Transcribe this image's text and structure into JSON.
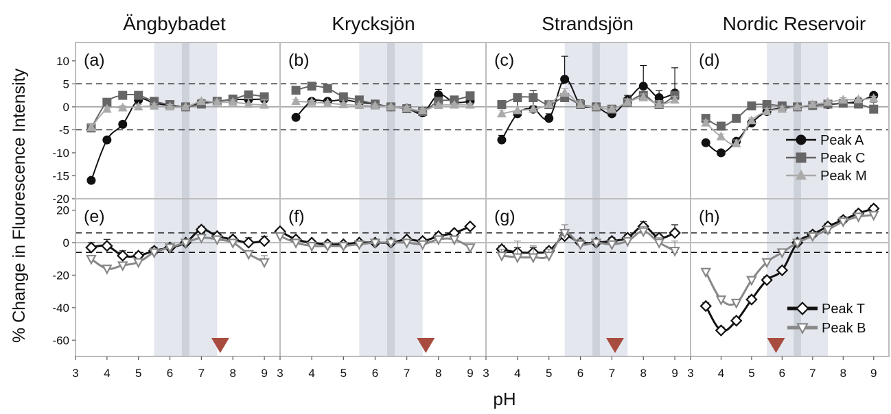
{
  "figure": {
    "ylabel": "% Change in Fluorescence Intensity",
    "xlabel": "pH",
    "columns": [
      "Ängbybadet",
      "Krycksjön",
      "Strandsjön",
      "Nordic Reservoir"
    ]
  },
  "colors": {
    "peak_a": "#111111",
    "peak_c": "#666666",
    "peak_m": "#aaaaaa",
    "peak_t": "#111111",
    "peak_b": "#888888",
    "marker": "#a84c40",
    "band": "#e4e7ee",
    "band_center": "#cdd1da"
  },
  "chart_data": [
    {
      "type": "scatter",
      "panel_label": "(a)",
      "lake": "Ängbybadet",
      "row": "top",
      "xlim": [
        3,
        9.5
      ],
      "ylim": [
        -20,
        14
      ],
      "yticks": [
        10,
        5,
        0,
        -5,
        -10,
        -15,
        -20
      ],
      "xticks": [
        3,
        4,
        5,
        6,
        7,
        8,
        9
      ],
      "reference_lines": [
        5,
        -5
      ],
      "shaded_ph": [
        5.5,
        7.5
      ],
      "center_ph": 6.5,
      "series": [
        {
          "name": "Peak A",
          "x": [
            3.5,
            4,
            4.5,
            5,
            5.5,
            6,
            6.5,
            7,
            7.5,
            8,
            8.5,
            9
          ],
          "y": [
            -16,
            -7.2,
            -3.8,
            1.5,
            0.8,
            0.3,
            0,
            0.8,
            1.2,
            1.6,
            1.6,
            1.7
          ],
          "err": [
            0.6,
            0.6,
            0.6,
            0.5,
            0.5,
            0.4,
            0.3,
            0.5,
            0.5,
            0.5,
            0.5,
            0.5
          ]
        },
        {
          "name": "Peak C",
          "x": [
            3.5,
            4,
            4.5,
            5,
            5.5,
            6,
            6.5,
            7,
            7.5,
            8,
            8.5,
            9
          ],
          "y": [
            -4.6,
            1.0,
            2.5,
            2.5,
            1.2,
            0.5,
            0,
            0.6,
            1.2,
            1.7,
            2.6,
            2.2
          ],
          "err": [
            0.6,
            0.4,
            0.4,
            0.4,
            0.4,
            0.4,
            0.3,
            0.4,
            0.5,
            0.5,
            0.6,
            0.6
          ]
        },
        {
          "name": "Peak M",
          "x": [
            3.5,
            4,
            4.5,
            5,
            5.5,
            6,
            6.5,
            7,
            7.5,
            8,
            8.5,
            9
          ],
          "y": [
            -4.5,
            -0.5,
            -0.2,
            0,
            0.2,
            0,
            0,
            1.2,
            1.0,
            1.0,
            0.6,
            0.4
          ],
          "err": [
            0.6,
            0.5,
            0.5,
            0.5,
            0.5,
            0.5,
            0.3,
            0.5,
            0.5,
            0.5,
            1.2,
            1.2
          ]
        }
      ]
    },
    {
      "type": "scatter",
      "panel_label": "(b)",
      "lake": "Krycksjön",
      "row": "top",
      "xlim": [
        3,
        9.5
      ],
      "ylim": [
        -20,
        14
      ],
      "yticks": [
        10,
        5,
        0,
        -5,
        -10,
        -15,
        -20
      ],
      "xticks": [
        3,
        4,
        5,
        6,
        7,
        8,
        9
      ],
      "reference_lines": [
        5,
        -5
      ],
      "shaded_ph": [
        5.5,
        7.5
      ],
      "center_ph": 6.5,
      "series": [
        {
          "name": "Peak A",
          "x": [
            3.5,
            4,
            4.5,
            5,
            5.5,
            6,
            6.5,
            7,
            7.5,
            8,
            8.5,
            9
          ],
          "y": [
            -2.3,
            1.2,
            1.2,
            1.5,
            1.0,
            0.6,
            0,
            -0.3,
            -1.3,
            2.6,
            1.0,
            1.2
          ],
          "err": [
            0.4,
            0.4,
            0.4,
            0.4,
            0.4,
            0.4,
            0.3,
            0.4,
            0.5,
            1.2,
            0.5,
            0.5
          ]
        },
        {
          "name": "Peak C",
          "x": [
            3.5,
            4,
            4.5,
            5,
            5.5,
            6,
            6.5,
            7,
            7.5,
            8,
            8.5,
            9
          ],
          "y": [
            3.6,
            4.5,
            4.0,
            2.2,
            1.5,
            0.6,
            0,
            -0.4,
            -1.0,
            1.2,
            1.5,
            2.4
          ],
          "err": [
            0.4,
            0.4,
            0.4,
            0.4,
            0.4,
            0.4,
            0.3,
            0.4,
            0.4,
            0.4,
            0.4,
            0.4
          ]
        },
        {
          "name": "Peak M",
          "x": [
            3.5,
            4,
            4.5,
            5,
            5.5,
            6,
            6.5,
            7,
            7.5,
            8,
            8.5,
            9
          ],
          "y": [
            1.2,
            1.0,
            0.8,
            0.5,
            0.3,
            0.2,
            0,
            -0.3,
            -0.8,
            0.3,
            0.4,
            0.4
          ],
          "err": [
            0.4,
            0.4,
            0.4,
            0.4,
            0.4,
            0.4,
            0.3,
            0.4,
            0.4,
            0.4,
            0.4,
            0.4
          ]
        }
      ]
    },
    {
      "type": "scatter",
      "panel_label": "(c)",
      "lake": "Strandsjön",
      "row": "top",
      "xlim": [
        3,
        9.5
      ],
      "ylim": [
        -20,
        14
      ],
      "yticks": [
        10,
        5,
        0,
        -5,
        -10,
        -15,
        -20
      ],
      "xticks": [
        3,
        4,
        5,
        6,
        7,
        8,
        9
      ],
      "reference_lines": [
        5,
        -5
      ],
      "shaded_ph": [
        5.5,
        7.5
      ],
      "center_ph": 6.5,
      "series": [
        {
          "name": "Peak A",
          "x": [
            3.5,
            4,
            4.5,
            5,
            5.5,
            6,
            6.5,
            7,
            7.5,
            8,
            8.5,
            9
          ],
          "y": [
            -7.2,
            -1.5,
            -0.5,
            -2.5,
            6.0,
            0.5,
            0,
            -1.5,
            1.5,
            4.5,
            2.0,
            3.0
          ],
          "err": [
            1.0,
            4.0,
            4.0,
            1.0,
            5.0,
            1.0,
            0.5,
            0.8,
            1.0,
            4.5,
            1.5,
            5.5
          ]
        },
        {
          "name": "Peak C",
          "x": [
            3.5,
            4,
            4.5,
            5,
            5.5,
            6,
            6.5,
            7,
            7.5,
            8,
            8.5,
            9
          ],
          "y": [
            0.5,
            2.0,
            2.0,
            0.5,
            2.0,
            0.5,
            0,
            -0.5,
            1.0,
            2.5,
            0.5,
            2.5
          ],
          "err": [
            0.5,
            0.5,
            0.5,
            0.5,
            0.5,
            0.5,
            0.4,
            0.5,
            0.5,
            0.5,
            0.5,
            0.5
          ]
        },
        {
          "name": "Peak M",
          "x": [
            3.5,
            4,
            4.5,
            5,
            5.5,
            6,
            6.5,
            7,
            7.5,
            8,
            8.5,
            9
          ],
          "y": [
            -1.5,
            -0.8,
            -0.5,
            0.5,
            3.0,
            0.5,
            0,
            -0.5,
            1.0,
            2.0,
            0.5,
            1.5
          ],
          "err": [
            0.8,
            0.8,
            0.8,
            0.8,
            1.0,
            0.8,
            0.4,
            0.6,
            0.6,
            0.8,
            0.8,
            0.8
          ]
        }
      ]
    },
    {
      "type": "scatter",
      "panel_label": "(d)",
      "lake": "Nordic Reservoir",
      "row": "top",
      "xlim": [
        3,
        9.5
      ],
      "ylim": [
        -20,
        14
      ],
      "yticks": [
        10,
        5,
        0,
        -5,
        -10,
        -15,
        -20
      ],
      "xticks": [
        3,
        4,
        5,
        6,
        7,
        8,
        9
      ],
      "reference_lines": [
        5,
        -5
      ],
      "shaded_ph": [
        5.5,
        7.5
      ],
      "center_ph": 6.5,
      "series": [
        {
          "name": "Peak A",
          "x": [
            3.5,
            4,
            4.5,
            5,
            5.5,
            6,
            6.5,
            7,
            7.5,
            8,
            8.5,
            9
          ],
          "y": [
            -7.8,
            -10.0,
            -7.5,
            -3.5,
            -1.0,
            -0.3,
            0,
            0.3,
            0.5,
            0.8,
            1.2,
            2.5
          ],
          "err": [
            0.5,
            0.5,
            0.5,
            0.5,
            0.5,
            0.5,
            0.3,
            0.5,
            0.5,
            0.5,
            0.5,
            0.6
          ]
        },
        {
          "name": "Peak C",
          "x": [
            3.5,
            4,
            4.5,
            5,
            5.5,
            6,
            6.5,
            7,
            7.5,
            8,
            8.5,
            9
          ],
          "y": [
            -2.5,
            -4.2,
            -2.5,
            0.2,
            0.5,
            0.2,
            0,
            0.3,
            0.6,
            0.8,
            0.6,
            -0.5
          ],
          "err": [
            0.5,
            0.5,
            0.5,
            0.5,
            0.5,
            0.5,
            0.3,
            0.5,
            0.5,
            0.5,
            0.5,
            1.5
          ]
        },
        {
          "name": "Peak M",
          "x": [
            3.5,
            4,
            4.5,
            5,
            5.5,
            6,
            6.5,
            7,
            7.5,
            8,
            8.5,
            9
          ],
          "y": [
            -3.5,
            -6.5,
            -8.0,
            -3.0,
            -1.0,
            -0.5,
            0,
            0.5,
            1.0,
            1.5,
            1.6,
            1.8
          ],
          "err": [
            0.6,
            0.6,
            0.8,
            0.6,
            0.6,
            0.6,
            0.3,
            0.5,
            0.5,
            0.5,
            0.5,
            0.5
          ]
        }
      ],
      "legend": [
        "Peak A",
        "Peak C",
        "Peak M"
      ],
      "legend_position": "right"
    },
    {
      "type": "scatter",
      "panel_label": "(e)",
      "lake": "Ängbybadet",
      "row": "bottom",
      "xlim": [
        3,
        9.5
      ],
      "ylim": [
        -70,
        27
      ],
      "yticks": [
        20,
        0,
        -20,
        -40,
        -60
      ],
      "xticks": [
        3,
        4,
        5,
        6,
        7,
        8,
        9
      ],
      "reference_lines": [
        6,
        -6
      ],
      "shaded_ph": [
        5.5,
        7.5
      ],
      "center_ph": 6.5,
      "marker_ph": 7.6,
      "series": [
        {
          "name": "Peak T",
          "x": [
            3.5,
            4,
            4.5,
            5,
            5.5,
            6,
            6.5,
            7,
            7.5,
            8,
            8.5,
            9
          ],
          "y": [
            -3,
            -2,
            -8,
            -8,
            -5,
            -3,
            0,
            8,
            4,
            2,
            0,
            1
          ],
          "err": [
            3,
            4,
            3,
            2,
            2,
            2,
            1,
            2,
            2,
            2,
            3,
            3
          ]
        },
        {
          "name": "Peak B",
          "x": [
            3.5,
            4,
            4.5,
            5,
            5.5,
            6,
            6.5,
            7,
            7.5,
            8,
            8.5,
            9
          ],
          "y": [
            -10,
            -16,
            -14,
            -12,
            -6,
            -3,
            0,
            3,
            2,
            0,
            -7,
            -12
          ],
          "err": [
            2,
            2,
            2,
            2,
            2,
            2,
            1,
            2,
            2,
            2,
            2,
            4
          ]
        }
      ]
    },
    {
      "type": "scatter",
      "panel_label": "(f)",
      "lake": "Krycksjön",
      "row": "bottom",
      "xlim": [
        3,
        9.5
      ],
      "ylim": [
        -70,
        27
      ],
      "yticks": [
        20,
        0,
        -20,
        -40,
        -60
      ],
      "xticks": [
        3,
        4,
        5,
        6,
        7,
        8,
        9
      ],
      "reference_lines": [
        6,
        -6
      ],
      "shaded_ph": [
        5.5,
        7.5
      ],
      "center_ph": 6.5,
      "marker_ph": 7.6,
      "series": [
        {
          "name": "Peak T",
          "x": [
            3,
            3.5,
            4,
            4.5,
            5,
            5.5,
            6,
            6.5,
            7,
            7.5,
            8,
            8.5,
            9
          ],
          "y": [
            7,
            2,
            0,
            -1,
            -1,
            0,
            0,
            0,
            2,
            1,
            4,
            6,
            10
          ],
          "err": [
            1,
            1,
            1,
            1,
            1,
            1,
            1,
            1,
            1,
            1,
            1,
            1,
            1
          ]
        },
        {
          "name": "Peak B",
          "x": [
            3,
            3.5,
            4,
            4.5,
            5,
            5.5,
            6,
            6.5,
            7,
            7.5,
            8,
            8.5,
            9
          ],
          "y": [
            4,
            0,
            -2,
            -2,
            -2,
            -1,
            0,
            0,
            0,
            -1,
            2,
            2,
            -3
          ],
          "err": [
            1,
            1,
            1,
            1,
            1,
            1,
            1,
            1,
            1,
            1,
            1,
            1,
            1
          ]
        }
      ]
    },
    {
      "type": "scatter",
      "panel_label": "(g)",
      "lake": "Strandsjön",
      "row": "bottom",
      "xlim": [
        3,
        9.5
      ],
      "ylim": [
        -70,
        27
      ],
      "yticks": [
        20,
        0,
        -20,
        -40,
        -60
      ],
      "xticks": [
        3,
        4,
        5,
        6,
        7,
        8,
        9
      ],
      "reference_lines": [
        6,
        -6
      ],
      "shaded_ph": [
        5.5,
        7.5
      ],
      "center_ph": 6.5,
      "marker_ph": 7.1,
      "series": [
        {
          "name": "Peak T",
          "x": [
            3.5,
            4,
            4.5,
            5,
            5.5,
            6,
            6.5,
            7,
            7.5,
            8,
            8.5,
            9
          ],
          "y": [
            -4,
            -6,
            -6,
            -5,
            4,
            0,
            0,
            1,
            3,
            10,
            3,
            6
          ],
          "err": [
            2,
            3,
            3,
            2,
            3,
            2,
            1,
            2,
            2,
            3,
            3,
            5
          ]
        },
        {
          "name": "Peak B",
          "x": [
            3.5,
            4,
            4.5,
            5,
            5.5,
            6,
            6.5,
            7,
            7.5,
            8,
            8.5,
            9
          ],
          "y": [
            -8,
            -9,
            -9,
            -8,
            6,
            -1,
            0,
            -1,
            1,
            7,
            0,
            -5
          ],
          "err": [
            4,
            10,
            7,
            4,
            5,
            3,
            1,
            2,
            2,
            3,
            3,
            6
          ]
        }
      ]
    },
    {
      "type": "scatter",
      "panel_label": "(h)",
      "lake": "Nordic Reservoir",
      "row": "bottom",
      "xlim": [
        3,
        9.5
      ],
      "ylim": [
        -70,
        27
      ],
      "yticks": [
        20,
        0,
        -20,
        -40,
        -60
      ],
      "xticks": [
        3,
        4,
        5,
        6,
        7,
        8,
        9
      ],
      "reference_lines": [
        6,
        -6
      ],
      "shaded_ph": [
        5.5,
        7.5
      ],
      "center_ph": 6.5,
      "marker_ph": 5.8,
      "series": [
        {
          "name": "Peak T",
          "x": [
            3.5,
            4,
            4.5,
            5,
            5.5,
            6,
            6.5,
            7,
            7.5,
            8,
            8.5,
            9
          ],
          "y": [
            -39,
            -54,
            -48,
            -35,
            -23,
            -17,
            0,
            5,
            10,
            14,
            18,
            21
          ],
          "err": [
            2,
            2,
            2,
            2,
            2,
            2,
            1,
            2,
            2,
            2,
            2,
            2
          ]
        },
        {
          "name": "Peak B",
          "x": [
            3.5,
            4,
            4.5,
            5,
            5.5,
            6,
            6.5,
            7,
            7.5,
            8,
            8.5,
            9
          ],
          "y": [
            -18,
            -35,
            -37,
            -23,
            -12,
            -6,
            0,
            4,
            8,
            13,
            16,
            17
          ],
          "err": [
            2,
            2,
            2,
            2,
            2,
            2,
            1,
            2,
            2,
            2,
            2,
            2
          ]
        }
      ],
      "legend": [
        "Peak T",
        "Peak B"
      ],
      "legend_position": "lower right"
    }
  ]
}
